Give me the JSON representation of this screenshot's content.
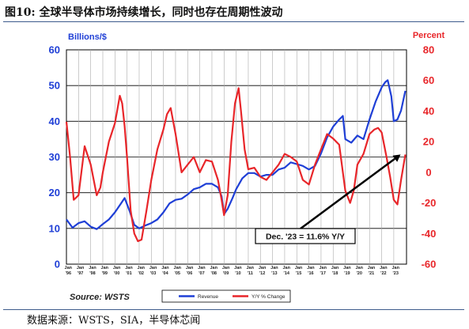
{
  "figure_title": "图10:  全球半导体市场持续增长，同时也存在周期性波动",
  "figure_source": "数据来源：WSTS，SIA，半导体芯闻",
  "chart_data": {
    "type": "line",
    "source_label": "Source: WSTS",
    "left_axis": {
      "unit_label": "Billions/$",
      "ticks": [
        0,
        10,
        20,
        30,
        40,
        50,
        60
      ],
      "ylim": [
        0,
        60
      ]
    },
    "right_axis": {
      "unit_label": "Percent",
      "ticks": [
        -60,
        -40,
        -20,
        0,
        20,
        40,
        60,
        80
      ],
      "ylim": [
        -60,
        80
      ]
    },
    "x_label_top": [
      "Jan",
      "Jan",
      "Jan",
      "Jan",
      "Jan",
      "Jan",
      "Jan",
      "Jan",
      "Jan",
      "Jan",
      "Jan",
      "Jan",
      "Jan",
      "Jan",
      "Jan",
      "Jan",
      "Jan",
      "Jan",
      "Jan",
      "Jan",
      "Jan",
      "Jan",
      "Jan",
      "Jan",
      "Jan",
      "Jan",
      "Jan",
      "Jan"
    ],
    "x_label_bottom": [
      "'96",
      "'97",
      "'98",
      "'99",
      "'00",
      "'01",
      "'02",
      "'03",
      "'04",
      "'05",
      "'06",
      "'07",
      "'08",
      "'09",
      "'10",
      "'11",
      "'12",
      "'13",
      "'14",
      "'15",
      "'16",
      "'17",
      "'18",
      "'19",
      "'20",
      "'21",
      "'22",
      "'23"
    ],
    "grid": true,
    "legend_position": "bottom",
    "series": [
      {
        "name": "Revenue",
        "axis": "left",
        "color": "#1f3fd6",
        "x": [
          1996.0,
          1996.5,
          1997.0,
          1997.5,
          1998.0,
          1998.5,
          1999.0,
          1999.5,
          2000.0,
          2000.5,
          2000.8,
          2001.2,
          2001.6,
          2002.0,
          2002.5,
          2003.0,
          2003.5,
          2004.0,
          2004.5,
          2005.0,
          2005.5,
          2006.0,
          2006.5,
          2007.0,
          2007.5,
          2008.0,
          2008.5,
          2008.8,
          2009.0,
          2009.3,
          2009.7,
          2010.0,
          2010.5,
          2011.0,
          2011.5,
          2012.0,
          2012.5,
          2013.0,
          2013.5,
          2014.0,
          2014.5,
          2015.0,
          2015.5,
          2016.0,
          2016.5,
          2017.0,
          2017.5,
          2018.0,
          2018.5,
          2018.8,
          2019.0,
          2019.5,
          2020.0,
          2020.5,
          2021.0,
          2021.5,
          2022.0,
          2022.3,
          2022.5,
          2022.8,
          2023.0,
          2023.3,
          2023.6,
          2023.95
        ],
        "values": [
          12.5,
          10.2,
          11.5,
          12.0,
          10.5,
          9.8,
          11.2,
          12.5,
          14.5,
          17.0,
          18.5,
          15.0,
          11.0,
          10.0,
          10.8,
          11.5,
          12.5,
          14.5,
          17.0,
          18.0,
          18.3,
          19.5,
          21.0,
          21.5,
          22.5,
          22.5,
          21.5,
          19.0,
          14.0,
          15.5,
          18.5,
          21.0,
          24.0,
          25.5,
          25.5,
          24.5,
          25.0,
          25.0,
          26.5,
          27.0,
          28.5,
          28.0,
          27.5,
          26.5,
          27.5,
          31.0,
          35.5,
          38.5,
          40.5,
          41.5,
          35.0,
          34.0,
          36.0,
          35.0,
          40.5,
          45.5,
          49.5,
          51.0,
          51.5,
          47.0,
          40.0,
          40.5,
          43.0,
          48.5
        ]
      },
      {
        "name": "Y/Y % Change",
        "axis": "right",
        "color": "#e8262a",
        "x": [
          1996.0,
          1996.3,
          1996.6,
          1997.0,
          1997.5,
          1998.0,
          1998.5,
          1998.8,
          1999.0,
          1999.5,
          2000.0,
          2000.4,
          2000.6,
          2000.8,
          2001.0,
          2001.3,
          2001.6,
          2001.9,
          2002.2,
          2002.6,
          2003.0,
          2003.5,
          2004.0,
          2004.3,
          2004.6,
          2005.0,
          2005.5,
          2006.0,
          2006.5,
          2007.0,
          2007.5,
          2008.0,
          2008.5,
          2008.8,
          2009.0,
          2009.3,
          2009.6,
          2009.9,
          2010.2,
          2010.4,
          2010.7,
          2011.0,
          2011.5,
          2012.0,
          2012.5,
          2013.0,
          2013.5,
          2014.0,
          2014.5,
          2015.0,
          2015.5,
          2016.0,
          2016.5,
          2017.0,
          2017.5,
          2018.0,
          2018.5,
          2019.0,
          2019.4,
          2019.7,
          2020.0,
          2020.5,
          2021.0,
          2021.4,
          2021.7,
          2022.0,
          2022.4,
          2022.7,
          2023.0,
          2023.3,
          2023.6,
          2023.95
        ],
        "values": [
          33.0,
          10.0,
          -18.0,
          -15.0,
          17.0,
          5.0,
          -15.0,
          -10.0,
          0.0,
          20.0,
          32.0,
          50.0,
          45.0,
          30.0,
          10.0,
          -25.0,
          -40.0,
          -45.0,
          -44.0,
          -25.0,
          -5.0,
          15.0,
          28.0,
          38.0,
          42.0,
          25.0,
          0.0,
          5.0,
          10.0,
          0.0,
          8.0,
          7.0,
          -5.0,
          -18.0,
          -28.0,
          -15.0,
          20.0,
          45.0,
          55.0,
          40.0,
          15.0,
          2.0,
          3.0,
          -3.0,
          -5.0,
          0.0,
          5.0,
          12.0,
          10.0,
          7.0,
          -5.0,
          -8.0,
          5.0,
          15.0,
          25.0,
          22.0,
          18.0,
          -12.0,
          -20.0,
          -12.0,
          5.0,
          12.0,
          25.0,
          28.0,
          29.0,
          26.0,
          10.0,
          -3.0,
          -18.0,
          -21.0,
          -5.0,
          11.6
        ]
      }
    ],
    "annotation": "Dec. '23 = 11.6% Y/Y"
  }
}
